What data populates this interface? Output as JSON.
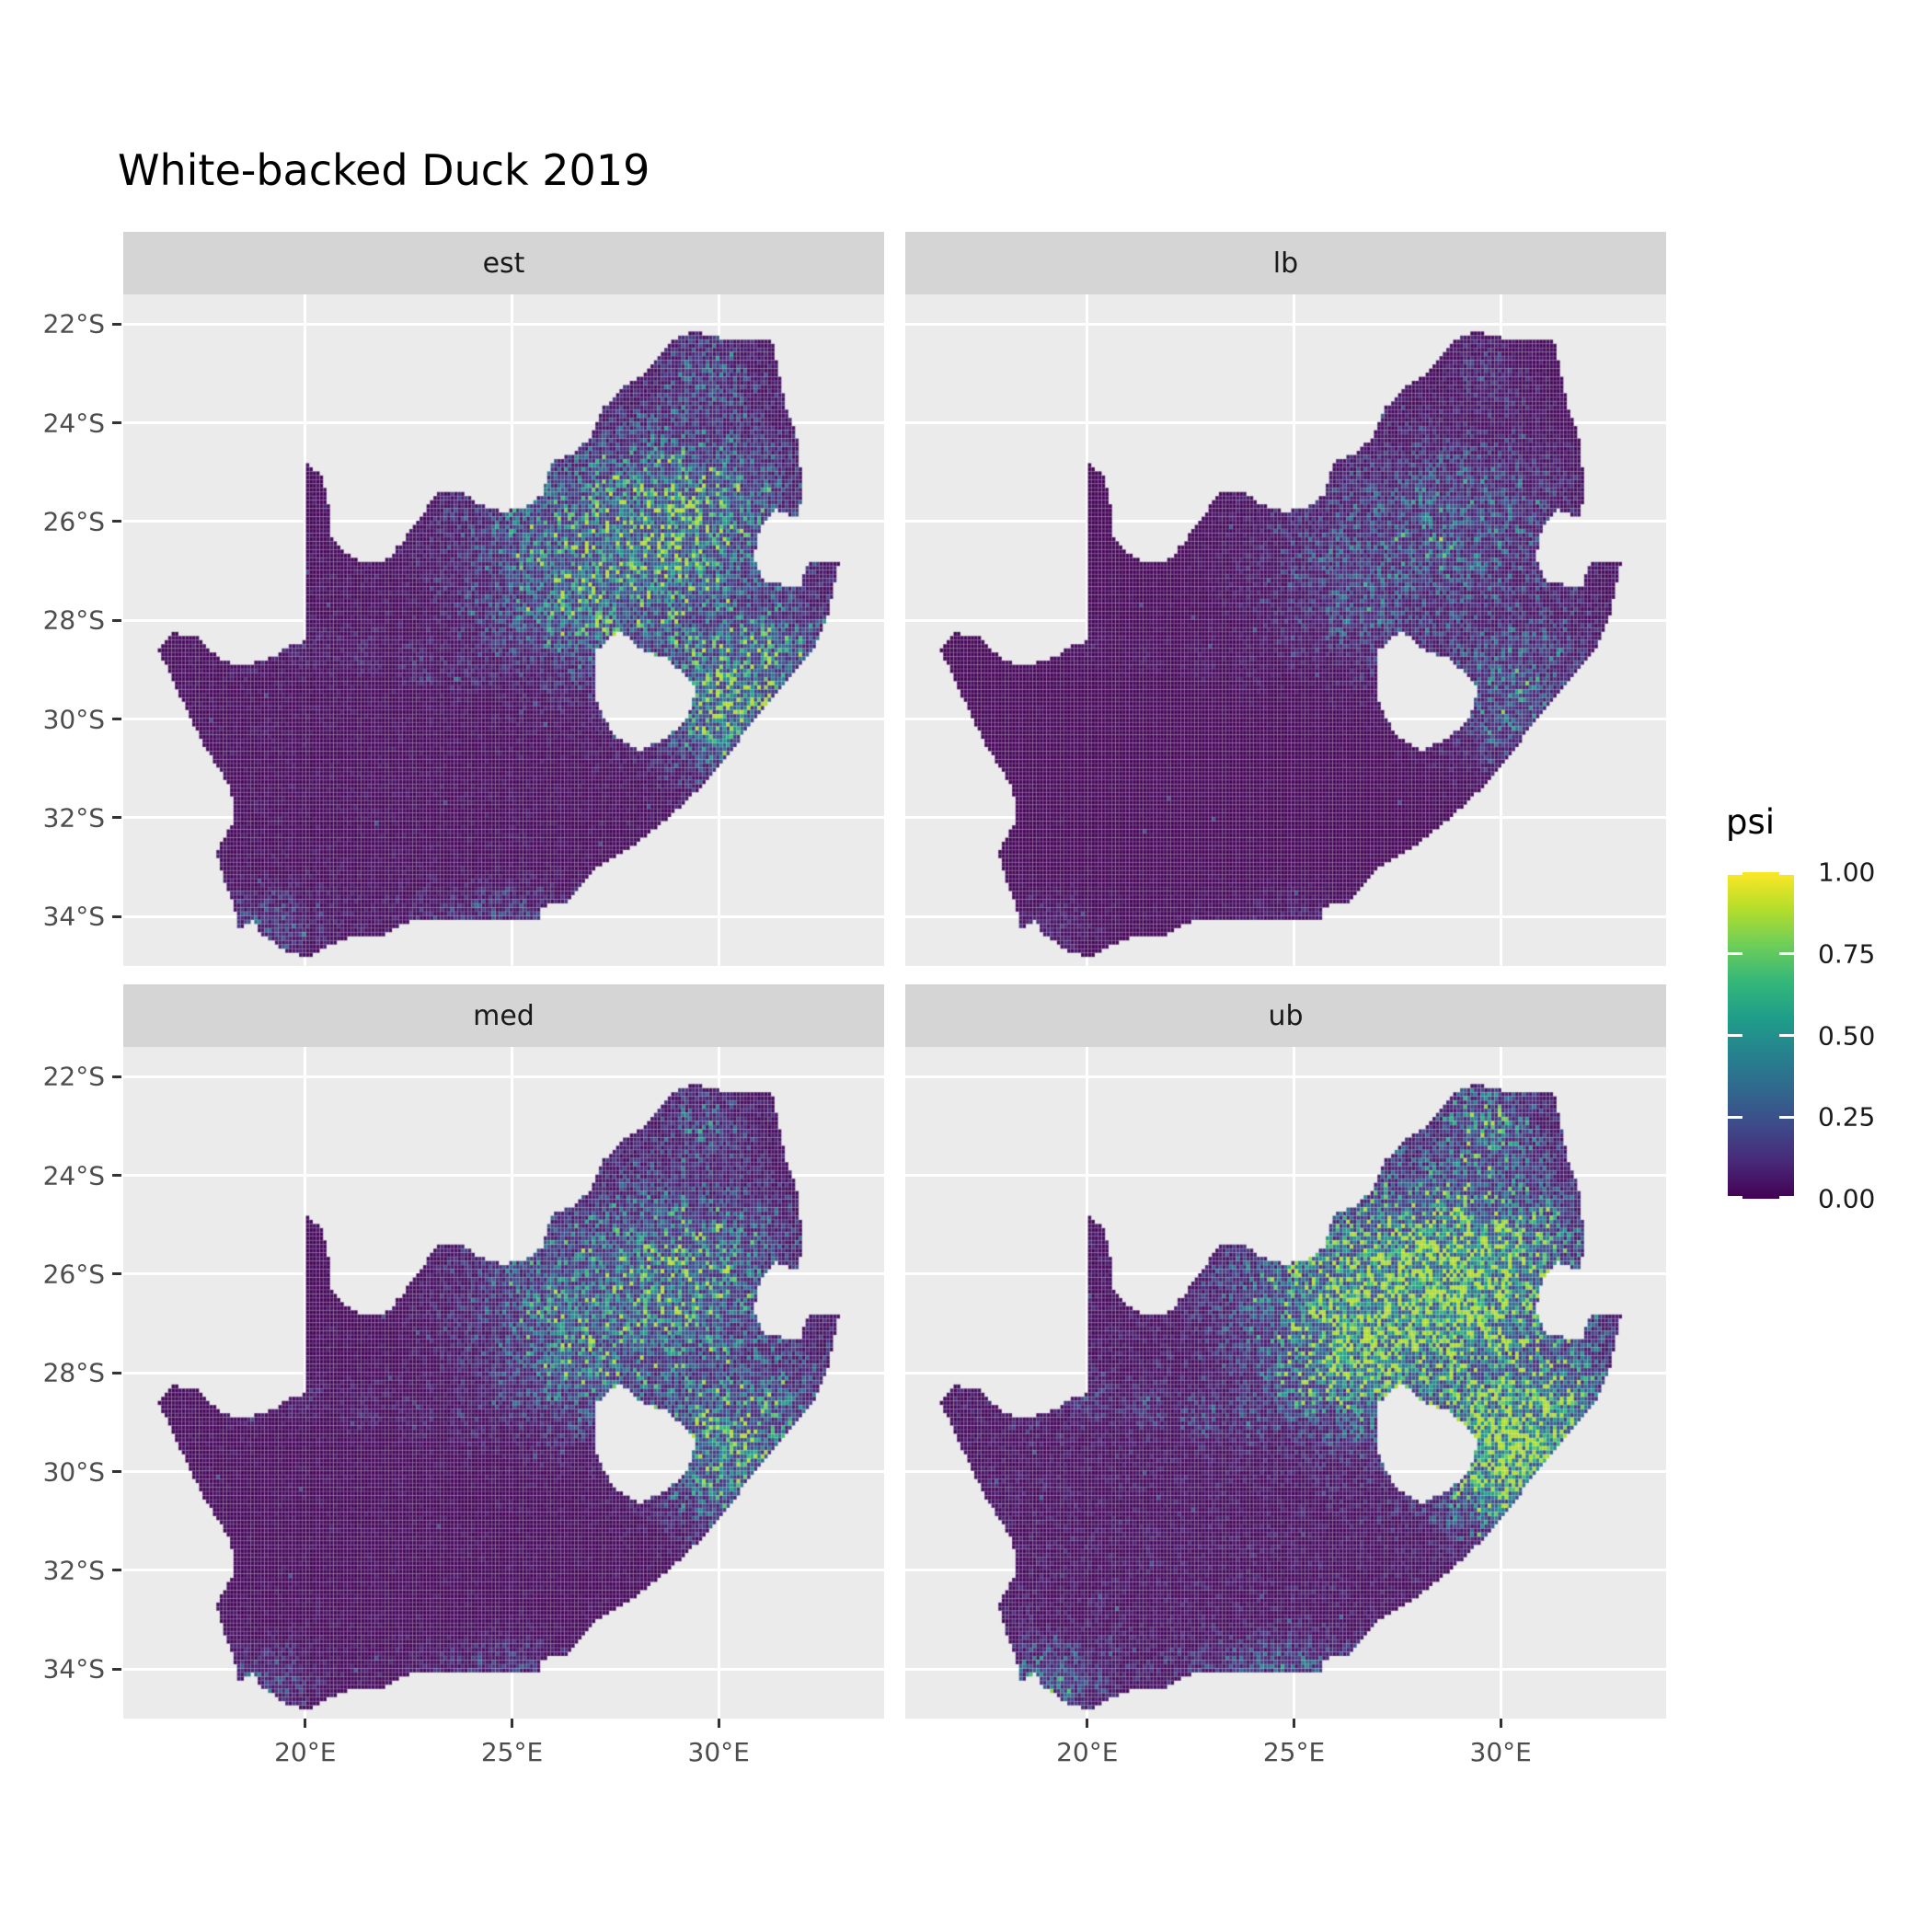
{
  "title": "White-backed Duck 2019",
  "facets": [
    {
      "label": "est"
    },
    {
      "label": "lb"
    },
    {
      "label": "med"
    },
    {
      "label": "ub"
    }
  ],
  "x_axis": {
    "labels": [
      "20°E",
      "25°E",
      "30°E"
    ],
    "values": [
      20,
      25,
      30
    ]
  },
  "y_axis": {
    "labels": [
      "22°S",
      "24°S",
      "26°S",
      "28°S",
      "30°S",
      "32°S",
      "34°S"
    ],
    "values": [
      -22,
      -24,
      -26,
      -28,
      -30,
      -32,
      -34
    ]
  },
  "legend": {
    "title": "psi",
    "tick_labels": [
      "1.00",
      "0.75",
      "0.50",
      "0.25",
      "0.00"
    ],
    "tick_values": [
      1.0,
      0.75,
      0.5,
      0.25,
      0.0
    ]
  },
  "colors": {
    "figure_bg": "#FFFFFF",
    "panel_bg": "#EBEBEB",
    "strip_bg": "#D5D5D5",
    "strip_text": "#1A1A1A",
    "gridline": "#FFFFFF",
    "axis_text": "#4D4D4D",
    "tick_mark": "#333333",
    "title_text": "#000000"
  },
  "chart_data": {
    "type": "heatmap",
    "subtype": "faceted-raster-occupancy-map",
    "title": "White-backed Duck 2019",
    "region": "South Africa (Lesotho shown as hole, Eswatini notch on east border)",
    "variable": "psi",
    "value_domain": [
      0,
      1
    ],
    "facets": [
      "est",
      "lb",
      "med",
      "ub"
    ],
    "facet_relative_intensity": {
      "est": 1.0,
      "lb": 0.45,
      "med": 0.88,
      "ub": 1.7
    },
    "legend": {
      "title": "psi",
      "ticks": [
        0.0,
        0.25,
        0.5,
        0.75,
        1.0
      ],
      "position": "right"
    },
    "scale": {
      "name": "viridis",
      "colors": [
        "#440154",
        "#482878",
        "#3e4a89",
        "#31688e",
        "#26828e",
        "#1f9e89",
        "#35b779",
        "#6ece58",
        "#b5de2b",
        "#fde725"
      ]
    },
    "axes": {
      "x": {
        "ticks": [
          20,
          25,
          30
        ],
        "labels": [
          "20°E",
          "25°E",
          "30°E"
        ]
      },
      "y": {
        "ticks": [
          -22,
          -24,
          -26,
          -28,
          -30,
          -32,
          -34
        ],
        "labels": [
          "22°S",
          "24°S",
          "26°S",
          "28°S",
          "30°S",
          "32°S",
          "34°S"
        ]
      }
    },
    "grid": "white major gridlines on grey panel",
    "extent": {
      "lon": [
        15.6,
        34.0
      ],
      "lat": [
        -35.0,
        -21.4
      ]
    },
    "cell_size_deg": 0.0833,
    "base_psi": 0.04,
    "hotspots": [
      [
        28.6,
        -26.3,
        2.3,
        1.5,
        0.5
      ],
      [
        26.0,
        -26.6,
        1.5,
        1.0,
        0.28
      ],
      [
        29.9,
        -29.6,
        1.0,
        0.9,
        0.62
      ],
      [
        30.9,
        -29.9,
        0.8,
        1.2,
        0.35
      ],
      [
        29.7,
        -23.0,
        0.7,
        0.55,
        0.28
      ],
      [
        29.3,
        -25.7,
        1.2,
        0.9,
        0.3
      ],
      [
        27.0,
        -28.2,
        1.3,
        0.8,
        0.22
      ],
      [
        19.0,
        -34.2,
        0.9,
        0.45,
        0.22
      ],
      [
        24.8,
        -34.0,
        1.5,
        0.4,
        0.16
      ],
      [
        31.8,
        -28.6,
        0.6,
        0.6,
        0.25
      ]
    ],
    "river_trace": [
      [
        29.0,
        -26.8
      ],
      [
        27.9,
        -27.15
      ],
      [
        26.9,
        -27.6
      ],
      [
        26.0,
        -28.05
      ],
      [
        25.0,
        -28.55
      ],
      [
        23.9,
        -29.0
      ],
      [
        22.7,
        -28.9
      ],
      [
        21.4,
        -28.7
      ],
      [
        20.0,
        -28.5
      ],
      [
        18.6,
        -28.55
      ]
    ],
    "map": {
      "outline": [
        [
          16.45,
          -28.6
        ],
        [
          16.8,
          -28.25
        ],
        [
          17.4,
          -28.35
        ],
        [
          17.9,
          -28.75
        ],
        [
          18.35,
          -28.9
        ],
        [
          18.85,
          -28.85
        ],
        [
          19.3,
          -28.7
        ],
        [
          19.65,
          -28.5
        ],
        [
          19.99,
          -28.42
        ],
        [
          19.99,
          -24.76
        ],
        [
          20.4,
          -25.1
        ],
        [
          20.55,
          -25.6
        ],
        [
          20.62,
          -26.25
        ],
        [
          20.85,
          -26.55
        ],
        [
          21.3,
          -26.8
        ],
        [
          21.9,
          -26.85
        ],
        [
          22.4,
          -26.35
        ],
        [
          22.8,
          -25.9
        ],
        [
          23.15,
          -25.45
        ],
        [
          23.7,
          -25.35
        ],
        [
          24.2,
          -25.65
        ],
        [
          24.75,
          -25.8
        ],
        [
          25.35,
          -25.7
        ],
        [
          25.75,
          -25.45
        ],
        [
          25.95,
          -24.8
        ],
        [
          26.5,
          -24.6
        ],
        [
          26.9,
          -24.3
        ],
        [
          27.2,
          -23.7
        ],
        [
          27.75,
          -23.25
        ],
        [
          28.3,
          -22.95
        ],
        [
          28.9,
          -22.3
        ],
        [
          29.45,
          -22.15
        ],
        [
          30.1,
          -22.3
        ],
        [
          31.3,
          -22.35
        ],
        [
          31.6,
          -23.6
        ],
        [
          31.95,
          -24.45
        ],
        [
          32.0,
          -25.3
        ],
        [
          31.95,
          -25.95
        ],
        [
          31.4,
          -25.75
        ],
        [
          31.0,
          -26.1
        ],
        [
          30.85,
          -26.75
        ],
        [
          31.1,
          -27.2
        ],
        [
          31.65,
          -27.3
        ],
        [
          31.97,
          -27.32
        ],
        [
          32.15,
          -26.85
        ],
        [
          32.9,
          -26.85
        ],
        [
          32.65,
          -27.9
        ],
        [
          32.25,
          -28.65
        ],
        [
          31.6,
          -29.25
        ],
        [
          30.95,
          -29.9
        ],
        [
          30.3,
          -30.65
        ],
        [
          29.6,
          -31.35
        ],
        [
          28.8,
          -32.0
        ],
        [
          27.9,
          -32.6
        ],
        [
          27.0,
          -33.05
        ],
        [
          26.3,
          -33.7
        ],
        [
          25.7,
          -33.8
        ],
        [
          25.65,
          -34.05
        ],
        [
          24.9,
          -34.1
        ],
        [
          24.0,
          -34.1
        ],
        [
          23.3,
          -34.05
        ],
        [
          22.5,
          -34.1
        ],
        [
          21.8,
          -34.4
        ],
        [
          20.9,
          -34.45
        ],
        [
          20.1,
          -34.8
        ],
        [
          19.6,
          -34.75
        ],
        [
          19.3,
          -34.55
        ],
        [
          18.9,
          -34.35
        ],
        [
          18.75,
          -34.05
        ],
        [
          18.4,
          -34.3
        ],
        [
          18.3,
          -33.85
        ],
        [
          18.0,
          -33.15
        ],
        [
          17.85,
          -32.7
        ],
        [
          18.3,
          -32.0
        ],
        [
          18.2,
          -31.4
        ],
        [
          17.5,
          -30.45
        ],
        [
          16.9,
          -29.4
        ]
      ],
      "lesotho_hole": [
        [
          27.0,
          -28.65
        ],
        [
          27.6,
          -28.2
        ],
        [
          28.2,
          -28.65
        ],
        [
          28.75,
          -28.75
        ],
        [
          29.15,
          -29.1
        ],
        [
          29.45,
          -29.4
        ],
        [
          29.25,
          -29.95
        ],
        [
          28.8,
          -30.35
        ],
        [
          28.05,
          -30.65
        ],
        [
          27.45,
          -30.3
        ],
        [
          27.0,
          -29.6
        ]
      ]
    }
  }
}
